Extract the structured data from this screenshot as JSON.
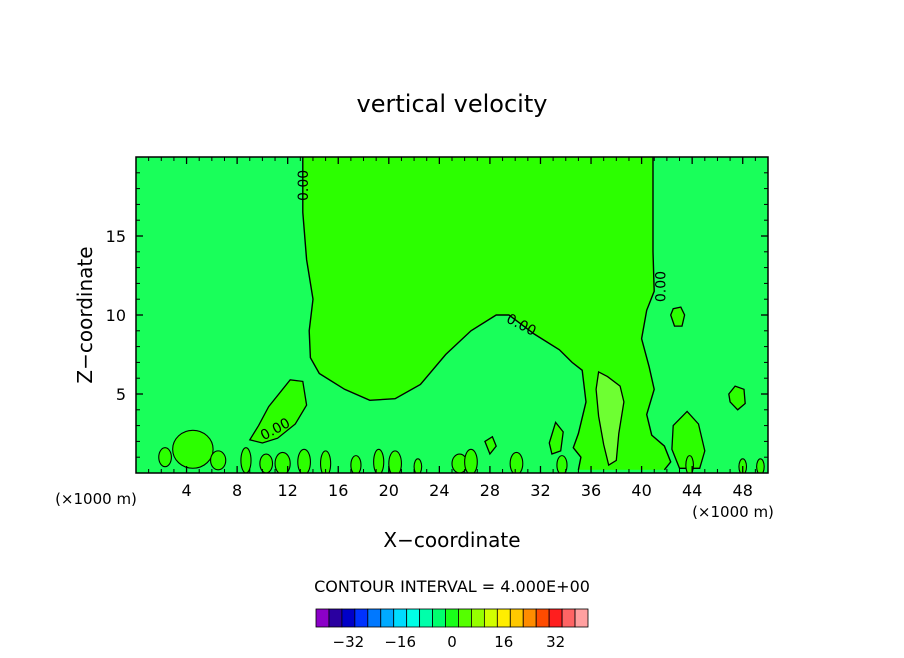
{
  "chart_data": {
    "type": "contour",
    "title": "vertical velocity",
    "xlabel": "X−coordinate",
    "ylabel": "Z−coordinate",
    "x_unit_label": "(×1000 m)",
    "y_unit_label": "(×1000 m)",
    "xlim": [
      0,
      50
    ],
    "ylim": [
      0,
      20
    ],
    "x_ticks": [
      4,
      8,
      12,
      16,
      20,
      24,
      28,
      32,
      36,
      40,
      44,
      48
    ],
    "y_ticks": [
      5,
      10,
      15
    ],
    "x_tick_labels": [
      "4",
      "8",
      "12",
      "16",
      "20",
      "24",
      "28",
      "32",
      "36",
      "40",
      "44",
      "48"
    ],
    "y_tick_labels": [
      "5",
      "10",
      "15"
    ],
    "contour_labels": [
      {
        "text": "0.00",
        "x": 13.2,
        "y": 18.2,
        "angle": -90
      },
      {
        "text": "0.00",
        "x": 30.5,
        "y": 9.4,
        "angle": 28
      },
      {
        "text": "0.00",
        "x": 41.5,
        "y": 11.8,
        "angle": -90
      },
      {
        "text": "0.00",
        "x": 11.0,
        "y": 2.8,
        "angle": -28
      }
    ],
    "contour_interval_text": "CONTOUR INTERVAL = 4.000E+00",
    "colorbar": {
      "ticks": [
        "−32",
        "−16",
        "0",
        "16",
        "32"
      ],
      "colors": [
        "#8b00c8",
        "#2a00a0",
        "#0000c8",
        "#0032ff",
        "#0078ff",
        "#00aaff",
        "#00dcff",
        "#00ffe6",
        "#00ffaa",
        "#00ff6e",
        "#19ff19",
        "#55ff00",
        "#96ff00",
        "#d2ff00",
        "#ffee00",
        "#ffc800",
        "#ff8c00",
        "#ff4b00",
        "#ff1e1e",
        "#ff6464",
        "#ffa0a0"
      ]
    },
    "regions": {
      "background_color": "#19ff5a",
      "positive_color": "#2cff00",
      "strong_positive_color": "#6eff32"
    },
    "contour_zero": [
      [
        [
          13.2,
          20
        ],
        [
          13.2,
          16.5
        ],
        [
          13.5,
          13.5
        ],
        [
          14.0,
          11.0
        ],
        [
          13.7,
          9.0
        ],
        [
          13.8,
          7.3
        ],
        [
          14.5,
          6.3
        ],
        [
          16.5,
          5.3
        ],
        [
          18.5,
          4.6
        ],
        [
          20.5,
          4.7
        ],
        [
          22.5,
          5.6
        ],
        [
          24.5,
          7.5
        ],
        [
          26.5,
          9.0
        ],
        [
          28.5,
          10.0
        ],
        [
          29.5,
          10.0
        ],
        [
          31.5,
          8.8
        ],
        [
          33.5,
          7.8
        ],
        [
          34.5,
          7.0
        ],
        [
          35.3,
          6.5
        ],
        [
          35.6,
          4.5
        ],
        [
          35.0,
          2.5
        ],
        [
          34.6,
          1.6
        ],
        [
          35.2,
          1.0
        ],
        [
          35.0,
          0.2
        ]
      ],
      [
        [
          40.9,
          20
        ],
        [
          40.9,
          14.0
        ],
        [
          41.0,
          11.5
        ],
        [
          40.4,
          10.3
        ],
        [
          40.0,
          8.5
        ],
        [
          40.6,
          6.7
        ],
        [
          41.0,
          5.3
        ],
        [
          40.4,
          3.7
        ],
        [
          40.8,
          2.4
        ],
        [
          41.8,
          1.7
        ],
        [
          42.3,
          0.7
        ],
        [
          41.8,
          0.2
        ]
      ],
      [
        [
          9.0,
          2.1
        ],
        [
          9.7,
          3.0
        ],
        [
          10.5,
          4.2
        ],
        [
          11.5,
          5.2
        ],
        [
          12.2,
          5.9
        ],
        [
          13.2,
          5.8
        ],
        [
          13.5,
          4.3
        ],
        [
          12.6,
          3.1
        ],
        [
          11.2,
          2.2
        ],
        [
          10.0,
          1.9
        ],
        [
          9.0,
          2.1
        ]
      ],
      [
        [
          42.3,
          10.0
        ],
        [
          42.6,
          9.3
        ],
        [
          43.2,
          9.3
        ],
        [
          43.4,
          10.0
        ],
        [
          43.1,
          10.5
        ],
        [
          42.5,
          10.4
        ],
        [
          42.3,
          10.0
        ]
      ],
      [
        [
          47.0,
          4.5
        ],
        [
          47.6,
          4.0
        ],
        [
          48.2,
          4.4
        ],
        [
          48.1,
          5.3
        ],
        [
          47.4,
          5.5
        ],
        [
          46.9,
          5.0
        ],
        [
          47.0,
          4.5
        ]
      ],
      [
        [
          42.5,
          3.0
        ],
        [
          43.6,
          3.9
        ],
        [
          44.5,
          3.1
        ],
        [
          45.0,
          1.4
        ],
        [
          44.6,
          0.3
        ],
        [
          43.0,
          0.3
        ],
        [
          42.4,
          1.5
        ],
        [
          42.5,
          3.0
        ]
      ],
      [
        [
          27.6,
          2.0
        ],
        [
          28.2,
          2.3
        ],
        [
          28.5,
          1.7
        ],
        [
          28.0,
          1.2
        ],
        [
          27.6,
          2.0
        ]
      ],
      [
        [
          32.7,
          1.9
        ],
        [
          33.2,
          3.2
        ],
        [
          33.8,
          2.6
        ],
        [
          33.6,
          1.4
        ],
        [
          32.9,
          1.2
        ],
        [
          32.7,
          1.9
        ]
      ]
    ],
    "contour_strong": [
      [
        [
          36.6,
          6.4
        ],
        [
          37.3,
          6.1
        ],
        [
          38.3,
          5.5
        ],
        [
          38.6,
          4.5
        ],
        [
          38.2,
          2.5
        ],
        [
          38.0,
          0.8
        ],
        [
          37.4,
          0.5
        ],
        [
          37.0,
          1.8
        ],
        [
          36.6,
          3.6
        ],
        [
          36.4,
          5.3
        ],
        [
          36.6,
          6.4
        ]
      ]
    ]
  }
}
